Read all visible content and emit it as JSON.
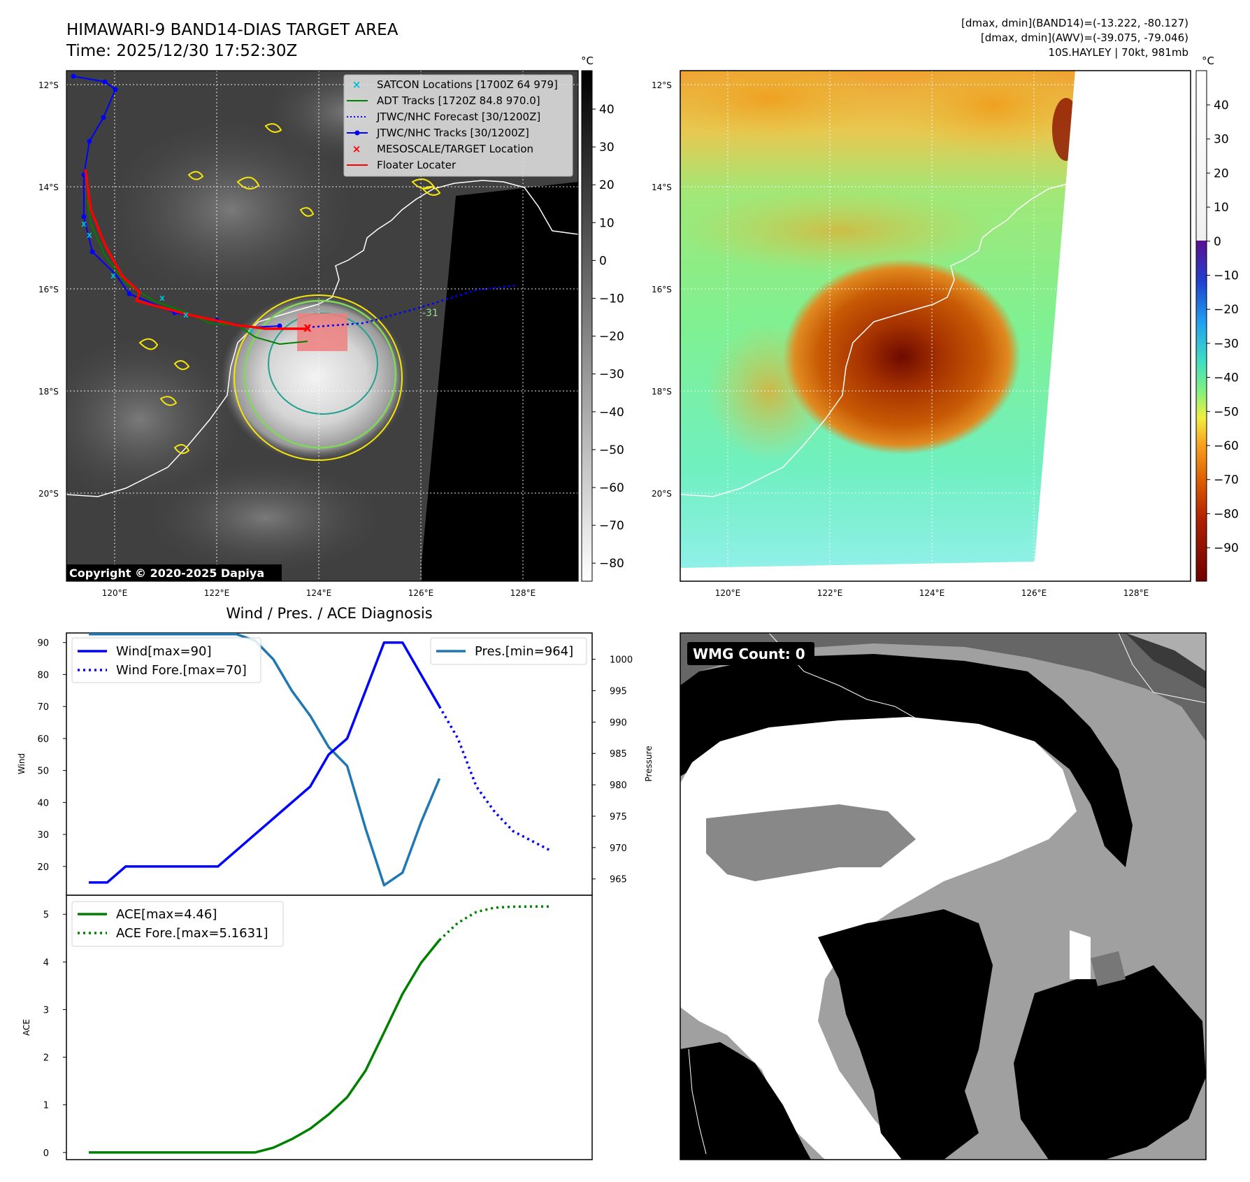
{
  "header": {
    "title": "HIMAWARI-9 BAND14-DIAS TARGET AREA",
    "time": "Time: 2025/12/30 17:52:30Z",
    "stats_band14": "[dmax, dmin](BAND14)=(-13.222, -80.127)",
    "stats_awv": "[dmax, dmin](AWV)=(-39.075, -79.046)",
    "storm_info": "10S.HAYLEY | 70kt, 981mb"
  },
  "map": {
    "lat_labels": [
      "12°S",
      "14°S",
      "16°S",
      "18°S",
      "20°S"
    ],
    "lon_labels": [
      "120°E",
      "122°E",
      "124°E",
      "126°E",
      "128°E"
    ],
    "copyright": "Copyright © 2020-2025 Dapiya",
    "contour_label": "-31",
    "legend": [
      {
        "label": "SATCON Locations [1700Z 64 979]",
        "color": "#00bcd4",
        "marker": "x"
      },
      {
        "label": "ADT Tracks [1720Z 84.8 970.0]",
        "color": "#008000",
        "marker": "line"
      },
      {
        "label": "JTWC/NHC Forecast [30/1200Z]",
        "color": "#0000ff",
        "marker": "dotted"
      },
      {
        "label": "JTWC/NHC Tracks [30/1200Z]",
        "color": "#0000ff",
        "marker": "line-dot"
      },
      {
        "label": "MESOSCALE/TARGET Location",
        "color": "#ff0000",
        "marker": "x"
      },
      {
        "label": "Floater Locater",
        "color": "#ff0000",
        "marker": "line"
      }
    ]
  },
  "colorbar_gray": {
    "unit": "°C",
    "ticks": [
      "40",
      "30",
      "20",
      "10",
      "0",
      "−10",
      "−20",
      "−30",
      "−40",
      "−50",
      "−60",
      "−70",
      "−80"
    ]
  },
  "colorbar_color": {
    "unit": "°C",
    "ticks": [
      "40",
      "30",
      "20",
      "10",
      "0",
      "−10",
      "−20",
      "−30",
      "−40",
      "−50",
      "−60",
      "−70",
      "−80",
      "−90"
    ]
  },
  "wmg": {
    "label": "WMG Count: 0"
  },
  "colors": {
    "wind": "#0000ff",
    "pressure": "#1f77b4",
    "ace": "#008000"
  },
  "chart_data": [
    {
      "type": "line",
      "title": "Wind / Pres. / ACE Diagnosis",
      "ylabel": "Wind",
      "ylim": [
        11,
        93
      ],
      "y_ticks": [
        "20",
        "30",
        "40",
        "50",
        "60",
        "70",
        "80",
        "90"
      ],
      "series": [
        {
          "name": "Wind[max=90]",
          "style": "solid",
          "x": [
            0,
            1,
            2,
            3,
            4,
            5,
            6,
            7,
            8,
            9,
            10,
            11,
            12,
            13,
            14,
            15,
            16,
            17,
            18,
            19
          ],
          "values": [
            15,
            15,
            20,
            20,
            20,
            20,
            20,
            20,
            25,
            30,
            35,
            40,
            45,
            55,
            60,
            75,
            90,
            90,
            80,
            70
          ]
        },
        {
          "name": "Wind Fore.[max=70]",
          "style": "dotted",
          "x": [
            19,
            20,
            21,
            22,
            23,
            24,
            25
          ],
          "values": [
            70,
            60,
            45,
            37,
            31,
            28,
            25
          ]
        }
      ]
    },
    {
      "type": "line",
      "ylabel": "Pressure",
      "ylim": [
        962.4,
        1004.2
      ],
      "y_ticks": [
        "965",
        "970",
        "975",
        "980",
        "985",
        "990",
        "995",
        "1000"
      ],
      "series": [
        {
          "name": "Pres.[min=964]",
          "style": "solid",
          "x": [
            0,
            1,
            2,
            3,
            4,
            5,
            6,
            7,
            8,
            9,
            10,
            11,
            12,
            13,
            14,
            15,
            16,
            17,
            18,
            19
          ],
          "values": [
            1004,
            1004,
            1004,
            1004,
            1004,
            1004,
            1004,
            1004,
            1004,
            1003,
            1000,
            995,
            991,
            986,
            983,
            973,
            964,
            966,
            974,
            981
          ]
        }
      ]
    },
    {
      "type": "line",
      "ylabel": "ACE",
      "ylim": [
        -0.15,
        5.4
      ],
      "y_ticks": [
        "0",
        "1",
        "2",
        "3",
        "4",
        "5"
      ],
      "series": [
        {
          "name": "ACE[max=4.46]",
          "style": "solid",
          "x": [
            0,
            1,
            2,
            3,
            4,
            5,
            6,
            7,
            8,
            9,
            10,
            11,
            12,
            13,
            14,
            15,
            16,
            17,
            18,
            19
          ],
          "values": [
            0,
            0,
            0,
            0,
            0,
            0,
            0,
            0,
            0,
            0,
            0.1,
            0.28,
            0.5,
            0.8,
            1.16,
            1.72,
            2.52,
            3.33,
            3.98,
            4.46
          ]
        },
        {
          "name": "ACE Fore.[max=5.1631]",
          "style": "dotted",
          "x": [
            19,
            20,
            21,
            22,
            23,
            24,
            25
          ],
          "values": [
            4.46,
            4.82,
            5.05,
            5.14,
            5.16,
            5.163,
            5.1631
          ]
        }
      ]
    }
  ]
}
